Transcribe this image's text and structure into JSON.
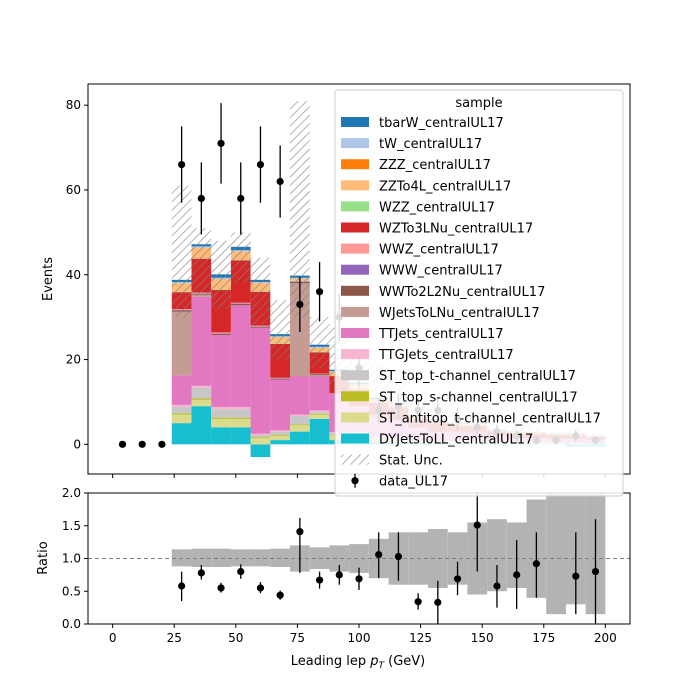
{
  "chart_data": {
    "type": "bar",
    "stacked": true,
    "xlabel_main": "Leading lep ",
    "xlabel_sym": "p",
    "xlabel_sub": "T",
    "xlabel_unit": " (GeV)",
    "ylabel_top": "Events",
    "ylabel_bottom": "Ratio",
    "ylim_top": [
      -7,
      85
    ],
    "ylim_bottom": [
      0,
      2
    ],
    "xlim": [
      -10,
      210
    ],
    "xticks": [
      0,
      25,
      50,
      75,
      100,
      125,
      150,
      175,
      200
    ],
    "yticks_top": [
      0,
      20,
      40,
      60,
      80
    ],
    "yticks_bottom": [
      "0.0",
      "0.5",
      "1.0",
      "1.5",
      "2.0"
    ],
    "legend_title": "sample",
    "legend_position": "top-right",
    "bins": [
      [
        24,
        32
      ],
      [
        32,
        40
      ],
      [
        40,
        48
      ],
      [
        48,
        56
      ],
      [
        56,
        64
      ],
      [
        64,
        72
      ],
      [
        72,
        80
      ],
      [
        80,
        88
      ],
      [
        88,
        96
      ],
      [
        96,
        104
      ],
      [
        104,
        112
      ],
      [
        112,
        120
      ],
      [
        120,
        128
      ],
      [
        128,
        136
      ],
      [
        136,
        144
      ],
      [
        144,
        152
      ],
      [
        152,
        160
      ],
      [
        160,
        168
      ],
      [
        168,
        176
      ],
      [
        176,
        184
      ],
      [
        184,
        192
      ],
      [
        192,
        200
      ]
    ],
    "mc_series": [
      {
        "name": "DYJetsToLL_centralUL17",
        "color": "#17becf",
        "values": [
          5,
          9,
          4,
          4,
          -3,
          1,
          3,
          6,
          1,
          1,
          0.5,
          0.5,
          0.3,
          0.3,
          0.3,
          0.3,
          0.2,
          0.2,
          0.2,
          0.1,
          -0.5,
          -0.5
        ]
      },
      {
        "name": "ST_antitop_t-channel_centralUL17",
        "color": "#dbdb8d",
        "values": [
          2,
          1.5,
          2,
          2,
          1.5,
          1,
          1.5,
          1,
          1,
          1,
          0.5,
          0.5,
          0.3,
          0.3,
          0.2,
          0.2,
          0.2,
          0.1,
          0.1,
          0.1,
          0.1,
          0.1
        ]
      },
      {
        "name": "ST_top_s-channel_centralUL17",
        "color": "#bcbd22",
        "values": [
          0.3,
          0.3,
          0.3,
          0.3,
          0.2,
          0.2,
          0.2,
          0.2,
          0.1,
          0.1,
          0.1,
          0.1,
          0,
          0,
          0,
          0,
          0,
          0,
          0,
          0,
          0,
          0
        ]
      },
      {
        "name": "ST_top_t-channel_centralUL17",
        "color": "#c7c7c7",
        "values": [
          1.5,
          2.5,
          2,
          2,
          0.5,
          0.8,
          2,
          0.5,
          0.5,
          0.5,
          0.3,
          0.3,
          0.2,
          0.2,
          0.2,
          0.2,
          0.1,
          0.1,
          0.1,
          0.1,
          0.1,
          0.1
        ]
      },
      {
        "name": "TTGJets_centralUL17",
        "color": "#f7b6d2",
        "values": [
          0.5,
          0.5,
          0.5,
          0.5,
          0.3,
          0.3,
          0.3,
          0.3,
          0.3,
          0.2,
          0.2,
          0.2,
          0.1,
          0.1,
          0.1,
          0.1,
          0.1,
          0.1,
          0.1,
          0.1,
          0.1,
          0.1
        ]
      },
      {
        "name": "TTJets_centralUL17",
        "color": "#e377c2",
        "values": [
          7,
          21,
          17,
          24,
          25,
          12,
          9,
          8,
          9,
          6,
          5,
          4,
          3,
          2,
          2,
          2,
          1.5,
          1,
          1,
          1,
          1,
          0.8
        ]
      },
      {
        "name": "WJetsToLNu_centralUL17",
        "color": "#c49c94",
        "values": [
          15,
          0.5,
          0,
          0,
          0,
          0,
          22,
          0.3,
          0,
          0,
          0,
          0,
          0,
          0,
          0,
          0,
          0,
          0,
          0,
          0,
          0,
          0
        ]
      },
      {
        "name": "WWTo2L2Nu_centralUL17",
        "color": "#8c564b",
        "values": [
          0.3,
          0.2,
          0.3,
          0.3,
          0.2,
          0.2,
          0.3,
          0.2,
          0.1,
          0.1,
          0.1,
          0.1,
          0.1,
          0.1,
          0,
          0,
          0,
          0,
          0,
          0,
          0,
          0
        ]
      },
      {
        "name": "WWW_centralUL17",
        "color": "#9467bd",
        "values": [
          0.1,
          0.1,
          0.1,
          0.1,
          0.1,
          0.1,
          0.1,
          0.1,
          0,
          0,
          0,
          0,
          0,
          0,
          0,
          0,
          0,
          0,
          0,
          0,
          0,
          0
        ]
      },
      {
        "name": "WWZ_centralUL17",
        "color": "#ff9896",
        "values": [
          0.2,
          0.2,
          0.2,
          0.2,
          0.2,
          0.1,
          0.1,
          0.1,
          0.1,
          0.1,
          0.1,
          0,
          0,
          0,
          0,
          0,
          0,
          0,
          0,
          0,
          0,
          0
        ]
      },
      {
        "name": "WZTo3LNu_centralUL17",
        "color": "#d62728",
        "values": [
          4,
          8,
          10,
          10,
          8,
          8,
          0,
          5,
          4,
          4,
          3,
          3,
          2,
          2,
          1.5,
          1.5,
          1,
          1,
          1,
          0.8,
          0.8,
          0.6
        ]
      },
      {
        "name": "WZZ_centralUL17",
        "color": "#98df8a",
        "values": [
          0.1,
          0.1,
          0.1,
          0.1,
          0.1,
          0.1,
          0.1,
          0.1,
          0,
          0,
          0,
          0,
          0,
          0,
          0,
          0,
          0,
          0,
          0,
          0,
          0,
          0
        ]
      },
      {
        "name": "ZZTo4L_centralUL17",
        "color": "#ffbb78",
        "values": [
          2,
          2.5,
          2.5,
          2,
          2,
          1.5,
          0.5,
          1,
          1,
          1,
          0.8,
          0.8,
          0.6,
          0.6,
          0.5,
          0.5,
          0.4,
          0.4,
          0.3,
          0.3,
          0.3,
          0.2
        ]
      },
      {
        "name": "ZZZ_centralUL17",
        "color": "#ff7f0e",
        "values": [
          0,
          0,
          0,
          0,
          0,
          0,
          0,
          0,
          0,
          0,
          0,
          0,
          0,
          0,
          0,
          0,
          0,
          0,
          0,
          0,
          0,
          0
        ]
      },
      {
        "name": "tW_centralUL17",
        "color": "#aec7e8",
        "values": [
          0.3,
          0.3,
          0.3,
          0.3,
          0.2,
          0.2,
          0.2,
          0.2,
          0.2,
          0.2,
          0.1,
          0.1,
          0.1,
          0.1,
          0.1,
          0.1,
          0,
          0,
          0,
          0,
          0,
          0
        ]
      },
      {
        "name": "tbarW_centralUL17",
        "color": "#1f77b4",
        "values": [
          0.5,
          0.5,
          0.8,
          0.8,
          0.5,
          0.5,
          0.5,
          0.5,
          0.3,
          0.3,
          0.3,
          0.2,
          0.2,
          0.2,
          0.2,
          0.1,
          0.1,
          0.1,
          0.1,
          0.1,
          0.1,
          0.1
        ]
      }
    ],
    "stat_unc_label": "Stat. Unc.",
    "stat_unc": [
      [
        30,
        61
      ],
      [
        35,
        51
      ],
      [
        32,
        48
      ],
      [
        38,
        50
      ],
      [
        28,
        44
      ],
      [
        20,
        34
      ],
      [
        30,
        81
      ],
      [
        18,
        30
      ],
      [
        14,
        28
      ],
      [
        12,
        22
      ],
      [
        9,
        19
      ],
      [
        7,
        16
      ],
      [
        4,
        10
      ],
      [
        3,
        9
      ],
      [
        2.5,
        7.5
      ],
      [
        2.5,
        7.5
      ],
      [
        2,
        6
      ],
      [
        1.5,
        5
      ],
      [
        1,
        4
      ],
      [
        0.5,
        3
      ],
      [
        0.3,
        3
      ],
      [
        0,
        2.5
      ]
    ],
    "data_label": "data_UL17",
    "data_points": [
      {
        "x": 4,
        "y": 0,
        "err": 0
      },
      {
        "x": 12,
        "y": 0,
        "err": 0
      },
      {
        "x": 20,
        "y": 0,
        "err": 0
      },
      {
        "x": 28,
        "y": 66,
        "err": 9
      },
      {
        "x": 36,
        "y": 58,
        "err": 8.5
      },
      {
        "x": 44,
        "y": 71,
        "err": 9.5
      },
      {
        "x": 52,
        "y": 58,
        "err": 8.5
      },
      {
        "x": 60,
        "y": 66,
        "err": 9
      },
      {
        "x": 68,
        "y": 62,
        "err": 8.5
      },
      {
        "x": 76,
        "y": 33,
        "err": 6.5
      },
      {
        "x": 84,
        "y": 36,
        "err": 7
      },
      {
        "x": 92,
        "y": 30,
        "err": 5.5
      },
      {
        "x": 100,
        "y": 18,
        "err": 4.5
      },
      {
        "x": 108,
        "y": 8,
        "err": 3
      },
      {
        "x": 116,
        "y": 9,
        "err": 3
      },
      {
        "x": 124,
        "y": 8,
        "err": 3
      },
      {
        "x": 132,
        "y": 8,
        "err": 3
      },
      {
        "x": 140,
        "y": 6,
        "err": 2.5
      },
      {
        "x": 148,
        "y": 4,
        "err": 2
      },
      {
        "x": 156,
        "y": 3,
        "err": 1.7
      },
      {
        "x": 164,
        "y": 2,
        "err": 1.4
      },
      {
        "x": 172,
        "y": 1,
        "err": 1
      },
      {
        "x": 180,
        "y": 1,
        "err": 1
      },
      {
        "x": 188,
        "y": 2,
        "err": 1.4
      },
      {
        "x": 196,
        "y": 1,
        "err": 1
      }
    ],
    "ratio_unc": [
      [
        0.88,
        1.14
      ],
      [
        0.87,
        1.15
      ],
      [
        0.87,
        1.15
      ],
      [
        0.88,
        1.14
      ],
      [
        0.88,
        1.14
      ],
      [
        0.87,
        1.15
      ],
      [
        0.8,
        1.2
      ],
      [
        0.84,
        1.17
      ],
      [
        0.8,
        1.2
      ],
      [
        0.78,
        1.22
      ],
      [
        0.7,
        1.3
      ],
      [
        0.6,
        1.4
      ],
      [
        0.6,
        1.4
      ],
      [
        0.55,
        1.45
      ],
      [
        0.6,
        1.4
      ],
      [
        0.45,
        1.55
      ],
      [
        0.5,
        1.6
      ],
      [
        0.55,
        1.55
      ],
      [
        0.4,
        1.9
      ],
      [
        0.15,
        2.0
      ],
      [
        0.3,
        2.0
      ],
      [
        0.15,
        2.0
      ]
    ],
    "ratio_points": [
      {
        "x": 28,
        "y": 0.58,
        "lo": 0.35,
        "hi": 0.8
      },
      {
        "x": 36,
        "y": 0.78,
        "lo": 0.68,
        "hi": 0.9
      },
      {
        "x": 44,
        "y": 0.55,
        "lo": 0.48,
        "hi": 0.63
      },
      {
        "x": 52,
        "y": 0.8,
        "lo": 0.69,
        "hi": 0.91
      },
      {
        "x": 60,
        "y": 0.55,
        "lo": 0.47,
        "hi": 0.64
      },
      {
        "x": 68,
        "y": 0.44,
        "lo": 0.37,
        "hi": 0.51
      },
      {
        "x": 76,
        "y": 1.41,
        "lo": 0.78,
        "hi": 1.62
      },
      {
        "x": 84,
        "y": 0.67,
        "lo": 0.54,
        "hi": 0.8
      },
      {
        "x": 92,
        "y": 0.75,
        "lo": 0.6,
        "hi": 0.9
      },
      {
        "x": 100,
        "y": 0.69,
        "lo": 0.52,
        "hi": 0.86
      },
      {
        "x": 108,
        "y": 1.06,
        "lo": 0.7,
        "hi": 1.4
      },
      {
        "x": 116,
        "y": 1.03,
        "lo": 0.66,
        "hi": 1.4
      },
      {
        "x": 124,
        "y": 0.34,
        "lo": 0.22,
        "hi": 0.47
      },
      {
        "x": 132,
        "y": 0.33,
        "lo": 0.0,
        "hi": 0.66
      },
      {
        "x": 140,
        "y": 0.69,
        "lo": 0.44,
        "hi": 0.95
      },
      {
        "x": 148,
        "y": 1.51,
        "lo": 0.8,
        "hi": 2.0
      },
      {
        "x": 156,
        "y": 0.58,
        "lo": 0.25,
        "hi": 0.9
      },
      {
        "x": 164,
        "y": 0.75,
        "lo": 0.23,
        "hi": 1.28
      },
      {
        "x": 172,
        "y": 0.92,
        "lo": 0.4,
        "hi": 1.4
      },
      {
        "x": 188,
        "y": 0.73,
        "lo": 0.15,
        "hi": 1.4
      },
      {
        "x": 196,
        "y": 0.8,
        "lo": 0.0,
        "hi": 1.6
      }
    ]
  }
}
